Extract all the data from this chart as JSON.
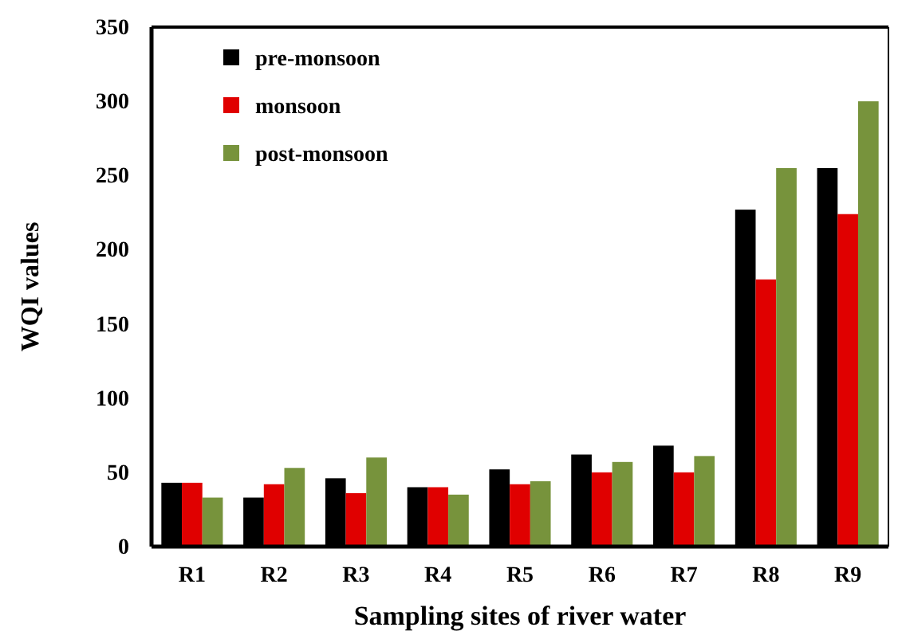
{
  "chart_data": {
    "type": "bar",
    "xlabel": "Sampling sites of river water",
    "ylabel": "WQI values",
    "categories": [
      "R1",
      "R2",
      "R3",
      "R4",
      "R5",
      "R6",
      "R7",
      "R8",
      "R9"
    ],
    "series": [
      {
        "name": "pre-monsoon",
        "color": "#000000",
        "values": [
          43,
          33,
          46,
          40,
          52,
          62,
          68,
          227,
          255
        ]
      },
      {
        "name": "monsoon",
        "color": "#e00000",
        "values": [
          43,
          42,
          36,
          40,
          42,
          50,
          50,
          180,
          224
        ]
      },
      {
        "name": "post-monsoon",
        "color": "#77933c",
        "values": [
          33,
          53,
          60,
          35,
          44,
          57,
          61,
          255,
          300
        ]
      }
    ],
    "ylim": [
      0,
      350
    ],
    "yticks": [
      0,
      50,
      100,
      150,
      200,
      250,
      300,
      350
    ],
    "grid": false,
    "legend": "top left"
  }
}
